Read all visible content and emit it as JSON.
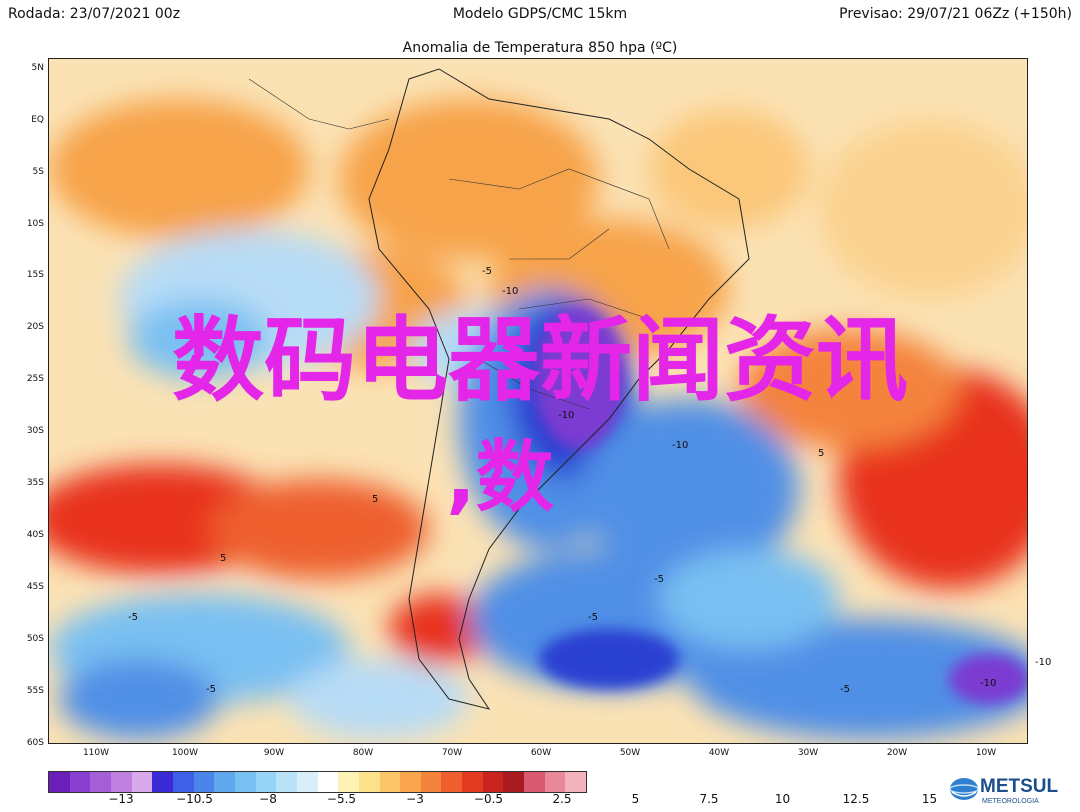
{
  "header": {
    "left": "Rodada: 23/07/2021 00z",
    "center": "Modelo GDPS/CMC 15km",
    "right": "Previsao: 29/07/21 06Zz (+150h)",
    "subtitle": "Anomalia de Temperatura 850 hpa (ºC)"
  },
  "map": {
    "lat_labels": [
      "5N",
      "EQ",
      "5S",
      "10S",
      "15S",
      "20S",
      "25S",
      "30S",
      "35S",
      "40S",
      "45S",
      "50S",
      "55S",
      "60S"
    ],
    "lon_labels": [
      "110W",
      "100W",
      "90W",
      "80W",
      "70W",
      "60W",
      "50W",
      "40W",
      "30W",
      "20W",
      "10W"
    ],
    "contour_labels": [
      "-10",
      "-10",
      "-10",
      "-5",
      "-5",
      "-5",
      "-5",
      "-5",
      "-10",
      "-10",
      "5",
      "5",
      "5",
      "-5"
    ],
    "colors": {
      "warm_strong": "#e8301d",
      "warm": "#f7a34a",
      "warm_light": "#fbd79a",
      "cool_light": "#b7dcf6",
      "cool": "#4f8fe6",
      "cold": "#2a3fd1",
      "very_cold": "#7b3ad1",
      "neutral": "#ffffff"
    }
  },
  "watermark": {
    "title": "数码电器新闻资讯",
    "subtitle": ",数"
  },
  "colorbar": {
    "colors": [
      "#6a1fb8",
      "#8a3fd0",
      "#a35ed8",
      "#bf80e0",
      "#d7a8ec",
      "#3a2bd6",
      "#3f5fe6",
      "#4a86ea",
      "#5fa8ee",
      "#79c0f2",
      "#96d3f6",
      "#b7e2f8",
      "#d8eefa",
      "#ffffff",
      "#fdf2b4",
      "#fde08a",
      "#fcc56a",
      "#f9a54e",
      "#f4833c",
      "#ee5e2e",
      "#e33a22",
      "#c8231c",
      "#a81a20",
      "#d95a70",
      "#e88898",
      "#f2b3bd"
    ],
    "ticks": [
      "−13",
      "−10.5",
      "−8",
      "−5.5",
      "−3",
      "−0.5",
      "2.5",
      "5",
      "7.5",
      "10",
      "12.5",
      "15"
    ]
  },
  "logo": {
    "name": "METSUL",
    "sub": "METEOROLOGIA",
    "icon": "globe-icon"
  }
}
